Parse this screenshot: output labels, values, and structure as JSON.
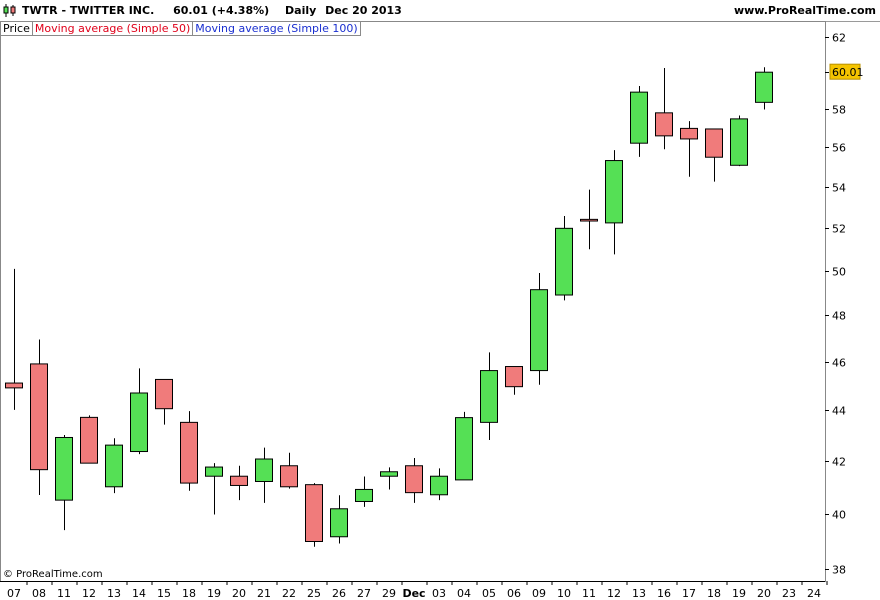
{
  "header": {
    "symbol": "TWTR",
    "name": "TWITTER INC.",
    "last": "60.01",
    "change": "(+4.38%)",
    "period": "Daily",
    "date": "Dec 20 2013",
    "site": "www.ProRealTime.com",
    "icon": "candlestick-icon"
  },
  "legend": [
    {
      "label": "Price",
      "color": "#000000"
    },
    {
      "label": "Moving average (Simple 50)",
      "color": "#e0001a"
    },
    {
      "label": "Moving average (Simple 100)",
      "color": "#1a2fd0"
    }
  ],
  "footer": {
    "credit": "© ProRealTime.com"
  },
  "colors": {
    "up": "#55e055",
    "down": "#f07b7b",
    "wick": "#000000",
    "price_tag": "#f5c400"
  },
  "chart_data": {
    "type": "candlestick",
    "y_axis": {
      "side": "right",
      "scale": "log",
      "ylim": [
        37.6,
        62.9
      ],
      "ticks": [
        38,
        40,
        42,
        44,
        46,
        48,
        50,
        52,
        54,
        56,
        58,
        60,
        62
      ]
    },
    "last_price_label": "60.01",
    "x_tick_labels": [
      "07",
      "08",
      "11",
      "12",
      "13",
      "14",
      "15",
      "18",
      "19",
      "20",
      "21",
      "22",
      "25",
      "26",
      "27",
      "29",
      "Dec",
      "03",
      "04",
      "05",
      "06",
      "09",
      "10",
      "11",
      "12",
      "13",
      "16",
      "17",
      "18",
      "19",
      "20",
      "23",
      "24"
    ],
    "bold_tick_labels": [
      "Dec"
    ],
    "candles": [
      {
        "date": "07",
        "open": 45.1,
        "high": 50.09,
        "low": 44.0,
        "close": 44.9
      },
      {
        "date": "08",
        "open": 45.9,
        "high": 46.94,
        "low": 40.69,
        "close": 41.65
      },
      {
        "date": "11",
        "open": 40.5,
        "high": 43.0,
        "low": 39.4,
        "close": 42.9
      },
      {
        "date": "12",
        "open": 43.7,
        "high": 43.78,
        "low": 41.9,
        "close": 41.9
      },
      {
        "date": "13",
        "open": 41.0,
        "high": 42.87,
        "low": 40.76,
        "close": 42.6
      },
      {
        "date": "14",
        "open": 42.35,
        "high": 45.71,
        "low": 42.25,
        "close": 44.69
      },
      {
        "date": "15",
        "open": 45.25,
        "high": 45.25,
        "low": 43.41,
        "close": 44.05
      },
      {
        "date": "18",
        "open": 43.5,
        "high": 43.95,
        "low": 40.85,
        "close": 41.14
      },
      {
        "date": "19",
        "open": 41.4,
        "high": 41.9,
        "low": 39.97,
        "close": 41.75
      },
      {
        "date": "20",
        "open": 41.4,
        "high": 41.8,
        "low": 40.5,
        "close": 41.05
      },
      {
        "date": "21",
        "open": 41.2,
        "high": 42.5,
        "low": 40.4,
        "close": 42.06
      },
      {
        "date": "22",
        "open": 41.8,
        "high": 42.3,
        "low": 40.93,
        "close": 41.0
      },
      {
        "date": "25",
        "open": 41.08,
        "high": 41.14,
        "low": 38.8,
        "close": 38.99
      },
      {
        "date": "26",
        "open": 39.16,
        "high": 40.68,
        "low": 38.92,
        "close": 40.18
      },
      {
        "date": "27",
        "open": 40.45,
        "high": 41.39,
        "low": 40.25,
        "close": 40.9
      },
      {
        "date": "29",
        "open": 41.4,
        "high": 41.74,
        "low": 40.9,
        "close": 41.57
      },
      {
        "date": "Dec",
        "open": 41.8,
        "high": 42.1,
        "low": 40.4,
        "close": 40.78
      },
      {
        "date": "03",
        "open": 40.7,
        "high": 41.7,
        "low": 40.5,
        "close": 41.4
      },
      {
        "date": "04",
        "open": 41.26,
        "high": 43.92,
        "low": 41.26,
        "close": 43.69
      },
      {
        "date": "05",
        "open": 43.5,
        "high": 46.39,
        "low": 42.8,
        "close": 45.62
      },
      {
        "date": "06",
        "open": 45.79,
        "high": 45.79,
        "low": 44.62,
        "close": 44.95
      },
      {
        "date": "09",
        "open": 45.62,
        "high": 49.9,
        "low": 45.03,
        "close": 49.14
      },
      {
        "date": "10",
        "open": 48.9,
        "high": 52.58,
        "low": 48.66,
        "close": 51.99
      },
      {
        "date": "11",
        "open": 52.42,
        "high": 53.87,
        "low": 51.0,
        "close": 52.34
      },
      {
        "date": "12",
        "open": 52.25,
        "high": 55.86,
        "low": 50.76,
        "close": 55.33
      },
      {
        "date": "13",
        "open": 56.22,
        "high": 59.25,
        "low": 55.52,
        "close": 58.92
      },
      {
        "date": "16",
        "open": 57.81,
        "high": 60.24,
        "low": 55.91,
        "close": 56.6
      },
      {
        "date": "17",
        "open": 56.99,
        "high": 57.37,
        "low": 54.51,
        "close": 56.44
      },
      {
        "date": "18",
        "open": 56.96,
        "high": 56.96,
        "low": 54.27,
        "close": 55.5
      },
      {
        "date": "19",
        "open": 55.09,
        "high": 57.67,
        "low": 55.05,
        "close": 57.49
      },
      {
        "date": "20",
        "open": 58.37,
        "high": 60.28,
        "low": 57.99,
        "close": 60.01
      }
    ]
  }
}
